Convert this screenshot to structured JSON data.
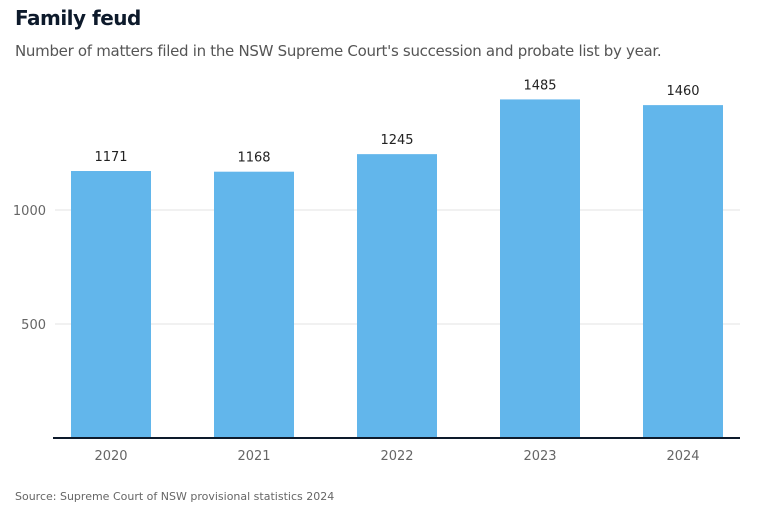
{
  "chart_data": {
    "type": "bar",
    "title": "Family feud",
    "subtitle": "Number of matters filed in the NSW Supreme Court's succession and probate list by year.",
    "categories": [
      "2020",
      "2021",
      "2022",
      "2023",
      "2024"
    ],
    "values": [
      1171,
      1168,
      1245,
      1485,
      1460
    ],
    "data_labels": [
      "1171",
      "1168",
      "1245",
      "1485",
      "1460"
    ],
    "yticks": [
      500,
      1000
    ],
    "ytick_labels": [
      "500",
      "1000"
    ],
    "ylim": [
      0,
      1500
    ],
    "xlabel": "",
    "ylabel": "",
    "grid": true,
    "bar_color": "#62b6eb",
    "source": "Source: Supreme Court of NSW provisional statistics 2024"
  }
}
